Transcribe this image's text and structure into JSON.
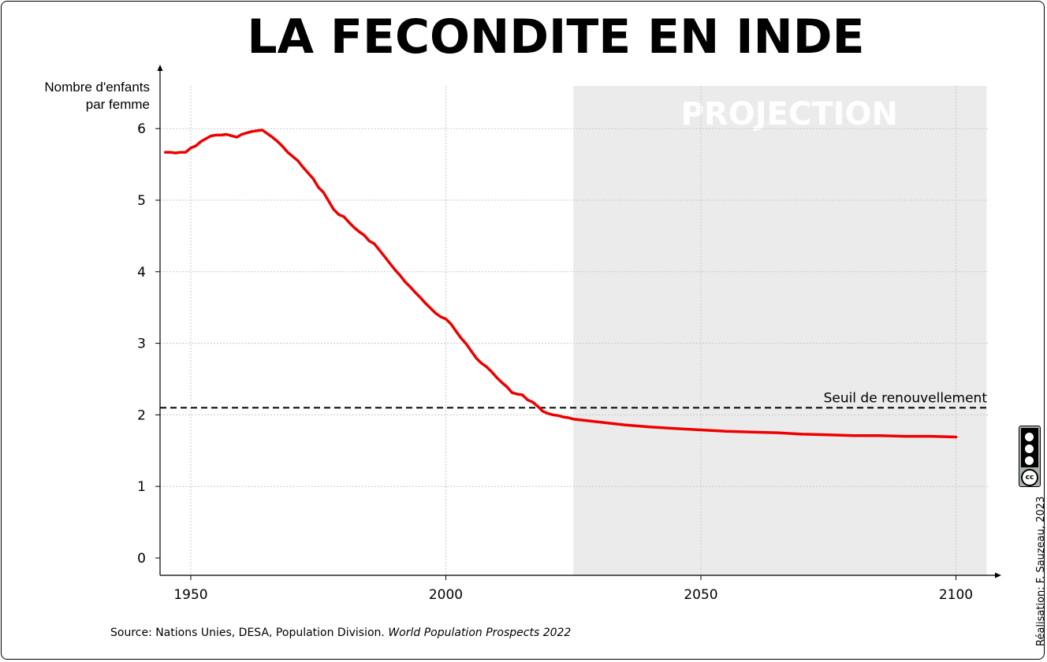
{
  "title": "LA FECONDITE EN INDE",
  "ylabel_line1": "Nombre d'enfants",
  "ylabel_line2": "par femme",
  "projection_label": "PROJECTION",
  "threshold_label": "Seuil de renouvellement",
  "source_prefix": "Source: Nations Unies, DESA, Population Division.",
  "source_title": "World Population Prospects 2022",
  "credit": "Réalisation: F. Sauzeau, 2023",
  "license_icon": "cc-by-nc-sa-icon",
  "colors": {
    "line": "#ee0000",
    "projection_bg": "#ebebeb",
    "threshold": "#000000"
  },
  "chart_data": {
    "type": "line",
    "title": "LA FECONDITE EN INDE",
    "xlabel": "",
    "ylabel": "Nombre d'enfants par femme",
    "xlim": [
      1945,
      2109
    ],
    "ylim": [
      -0.25,
      6.4
    ],
    "xticks": [
      1950,
      2000,
      2050,
      2100
    ],
    "yticks": [
      0,
      1,
      2,
      3,
      4,
      5,
      6
    ],
    "grid": true,
    "projection_start": 2025,
    "projection_end": 2106,
    "threshold": 2.1,
    "series": [
      {
        "x": [
          1945,
          1946,
          1947,
          1948,
          1949,
          1950,
          1951,
          1952,
          1953,
          1954,
          1955,
          1956,
          1957,
          1958,
          1959,
          1960,
          1961,
          1962,
          1963,
          1964,
          1965,
          1966,
          1967,
          1968,
          1969,
          1970,
          1971,
          1972,
          1973,
          1974,
          1975,
          1976,
          1977,
          1978,
          1979,
          1980,
          1981,
          1982,
          1983,
          1984,
          1985,
          1986,
          1987,
          1988,
          1989,
          1990,
          1991,
          1992,
          1993,
          1994,
          1995,
          1996,
          1997,
          1998,
          1999,
          2000,
          2001,
          2002,
          2003,
          2004,
          2005,
          2006,
          2007,
          2008,
          2009,
          2010,
          2011,
          2012,
          2013,
          2014,
          2015,
          2016,
          2017,
          2018,
          2019,
          2020,
          2021,
          2022,
          2023,
          2024,
          2025,
          2030,
          2035,
          2040,
          2045,
          2050,
          2055,
          2060,
          2065,
          2070,
          2075,
          2080,
          2085,
          2090,
          2095,
          2100
        ],
        "y": [
          5.67,
          5.67,
          5.66,
          5.67,
          5.67,
          5.73,
          5.76,
          5.82,
          5.86,
          5.9,
          5.91,
          5.91,
          5.92,
          5.9,
          5.88,
          5.92,
          5.94,
          5.96,
          5.97,
          5.98,
          5.93,
          5.88,
          5.82,
          5.75,
          5.67,
          5.61,
          5.55,
          5.46,
          5.38,
          5.3,
          5.18,
          5.11,
          4.99,
          4.87,
          4.8,
          4.77,
          4.69,
          4.62,
          4.56,
          4.51,
          4.43,
          4.39,
          4.3,
          4.21,
          4.12,
          4.03,
          3.95,
          3.86,
          3.79,
          3.71,
          3.64,
          3.56,
          3.49,
          3.42,
          3.37,
          3.34,
          3.27,
          3.17,
          3.07,
          2.99,
          2.89,
          2.79,
          2.72,
          2.67,
          2.6,
          2.52,
          2.45,
          2.39,
          2.31,
          2.29,
          2.28,
          2.21,
          2.18,
          2.12,
          2.05,
          2.02,
          2.0,
          1.99,
          1.97,
          1.96,
          1.94,
          1.9,
          1.86,
          1.83,
          1.81,
          1.79,
          1.77,
          1.76,
          1.75,
          1.73,
          1.72,
          1.71,
          1.71,
          1.7,
          1.7,
          1.69
        ]
      }
    ]
  }
}
